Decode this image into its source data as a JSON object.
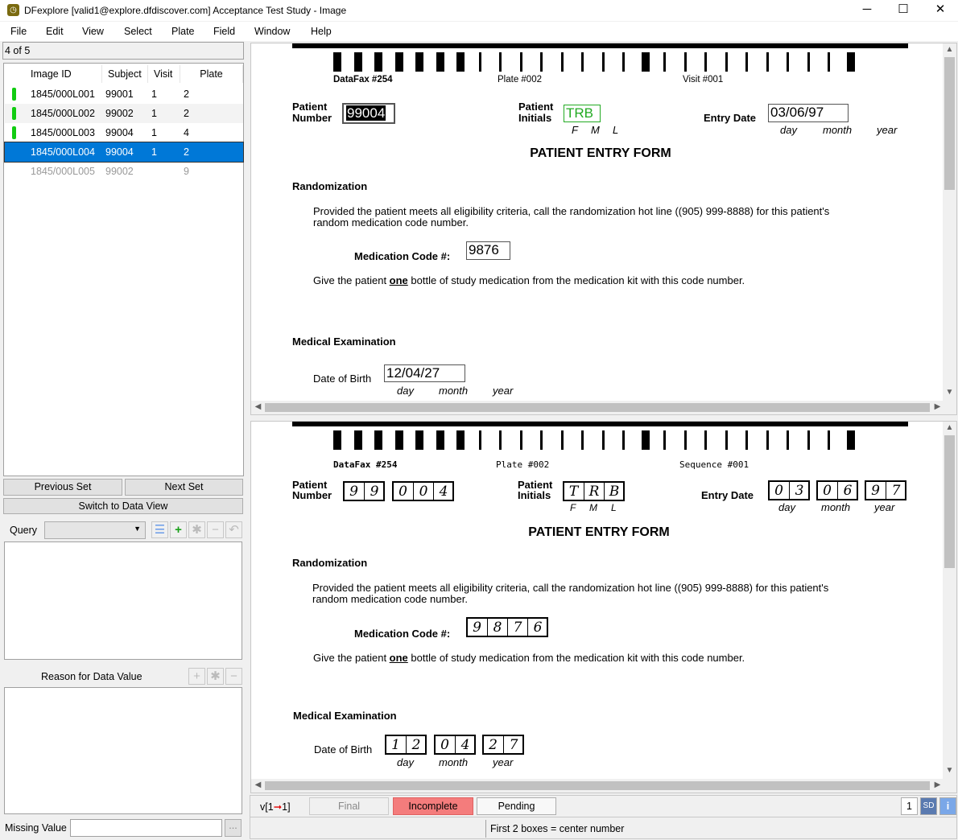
{
  "window": {
    "title": "DFexplore [valid1@explore.dfdiscover.com] Acceptance Test Study - Image",
    "minimize": "─",
    "maximize": "☐",
    "close": "✕"
  },
  "menu": [
    "File",
    "Edit",
    "View",
    "Select",
    "Plate",
    "Field",
    "Window",
    "Help"
  ],
  "record_counter": "4 of 5",
  "table": {
    "columns": [
      "Image ID",
      "Subject",
      "Visit",
      "Plate"
    ],
    "rows": [
      {
        "image_id": "1845/000L001",
        "subject": "99001",
        "visit": "1",
        "plate": "2",
        "status": "green"
      },
      {
        "image_id": "1845/000L002",
        "subject": "99002",
        "visit": "1",
        "plate": "2",
        "status": "green"
      },
      {
        "image_id": "1845/000L003",
        "subject": "99004",
        "visit": "1",
        "plate": "4",
        "status": "green"
      },
      {
        "image_id": "1845/000L004",
        "subject": "99004",
        "visit": "1",
        "plate": "2",
        "status": "selected"
      },
      {
        "image_id": "1845/000L005",
        "subject": "99002",
        "visit": "",
        "plate": "9",
        "status": "disabled"
      }
    ]
  },
  "buttons": {
    "previous_set": "Previous Set",
    "next_set": "Next Set",
    "switch_view": "Switch to Data View"
  },
  "query": {
    "label": "Query",
    "value": ""
  },
  "reason": {
    "label": "Reason for Data Value"
  },
  "missing_value": {
    "label": "Missing Value",
    "value": "",
    "browse": "..."
  },
  "form": {
    "header": {
      "datafax": "DataFax #254",
      "plate": "Plate #002",
      "visit": "Visit #001",
      "sequence": "Sequence #001"
    },
    "patient_number_label": [
      "Patient",
      "Number"
    ],
    "patient_initials_label": [
      "Patient",
      "Initials"
    ],
    "initials_sub": [
      "F",
      "M",
      "L"
    ],
    "entry_date_label": "Entry Date",
    "date_sub": [
      "day",
      "month",
      "year"
    ],
    "title": "PATIENT ENTRY FORM",
    "randomization": "Randomization",
    "rand_text_1": "Provided the patient meets all eligibility criteria, call the randomization hot line ((905) 999-8888) for this patient's",
    "rand_text_2": "random medication code number.",
    "medication_label": "Medication Code #:",
    "give_pre": "Give the patient ",
    "give_bold": "one",
    "give_post": " bottle of study medication from the medication kit with this code number.",
    "medical_exam": "Medical Examination",
    "dob_label": "Date of Birth"
  },
  "values": {
    "patient_number": "99004",
    "initials": "TRB",
    "entry_date": "03/06/97",
    "medication_code": "9876",
    "dob": "12/04/27"
  },
  "image_boxes": {
    "patient_number": [
      [
        "9",
        "9"
      ],
      [
        "0",
        "0",
        "4"
      ]
    ],
    "initials": [
      [
        "T",
        "R",
        "B"
      ]
    ],
    "entry_date": [
      [
        "0",
        "3"
      ],
      [
        "0",
        "6"
      ],
      [
        "9",
        "7"
      ]
    ],
    "medication_code": [
      [
        "9",
        "8",
        "7",
        "6"
      ]
    ],
    "dob": [
      [
        "1",
        "2"
      ],
      [
        "0",
        "4"
      ],
      [
        "2",
        "7"
      ]
    ]
  },
  "barcode": "WWWWWWWNNNNNNNNWNNNNNNNNNW",
  "status": {
    "version_pre": "v[1",
    "version_post": "1]",
    "final": "Final",
    "incomplete": "Incomplete",
    "pending": "Pending",
    "level": "1",
    "sd": "SD",
    "info": "i",
    "help_text": "First 2 boxes = center number"
  },
  "colors": {
    "selection": "#0078d7",
    "incomplete": "#f47c7c",
    "field_ok": "#22aa22",
    "indicator": "#11cc11"
  }
}
